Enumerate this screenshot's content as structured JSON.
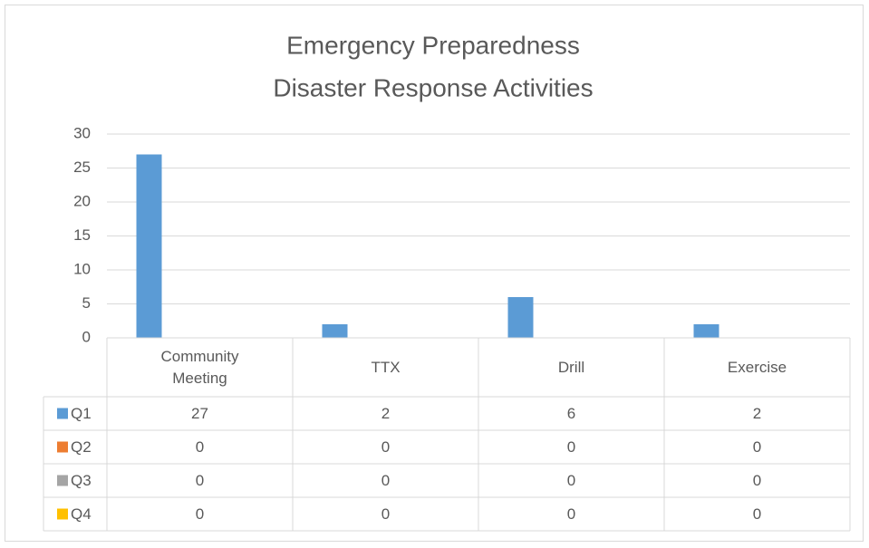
{
  "chart_data": {
    "type": "bar",
    "title": [
      "Emergency Preparedness",
      "Disaster Response Activities"
    ],
    "categories": [
      "Community Meeting",
      "TTX",
      "Drill",
      "Exercise"
    ],
    "series": [
      {
        "name": "Q1",
        "color": "#5b9bd5",
        "values": [
          27,
          2,
          6,
          2
        ]
      },
      {
        "name": "Q2",
        "color": "#ed7d31",
        "values": [
          0,
          0,
          0,
          0
        ]
      },
      {
        "name": "Q3",
        "color": "#a5a5a5",
        "values": [
          0,
          0,
          0,
          0
        ]
      },
      {
        "name": "Q4",
        "color": "#ffc000",
        "values": [
          0,
          0,
          0,
          0
        ]
      }
    ],
    "ylim": [
      0,
      30
    ],
    "yticks": [
      0,
      5,
      10,
      15,
      20,
      25,
      30
    ],
    "grid": true,
    "data_table": true
  }
}
